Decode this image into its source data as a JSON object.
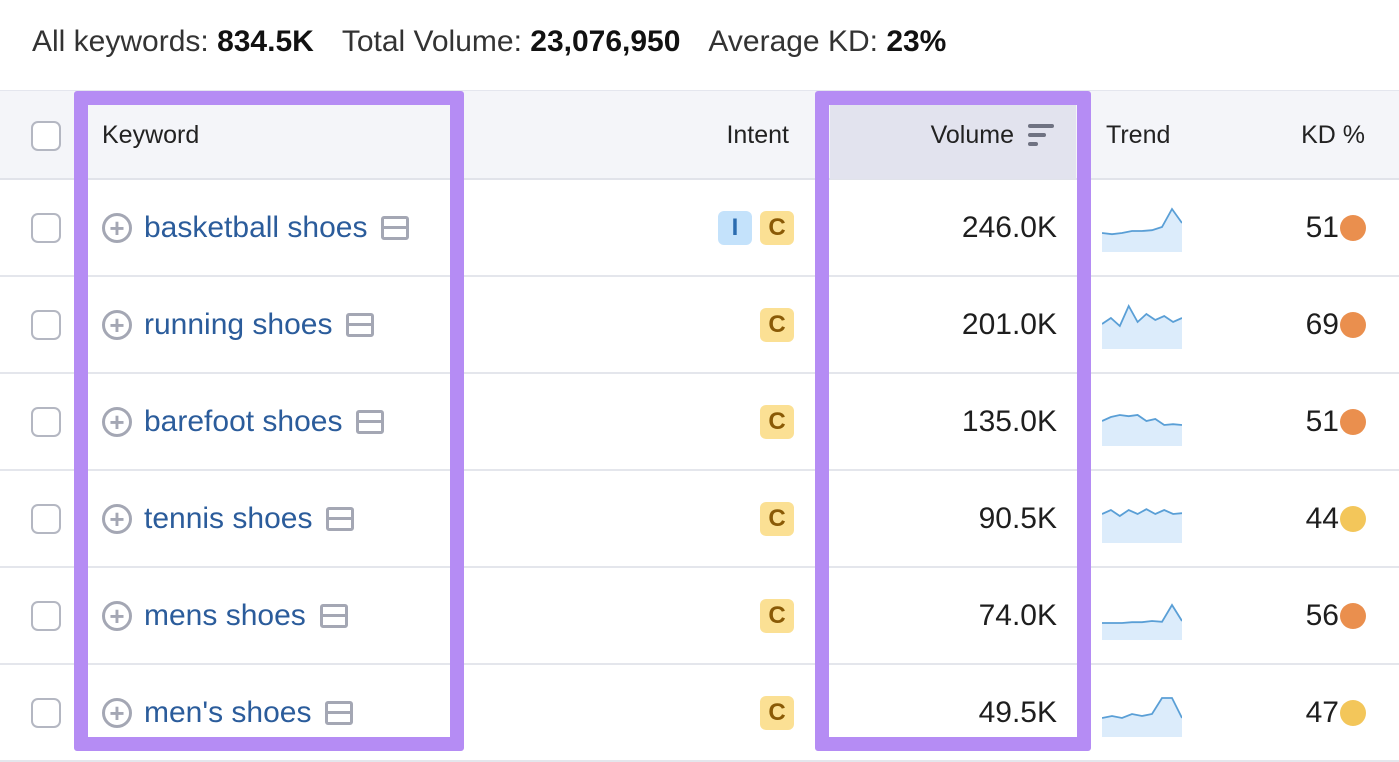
{
  "summary": {
    "all_keywords_label": "All keywords:",
    "all_keywords_value": "834.5K",
    "total_volume_label": "Total Volume:",
    "total_volume_value": "23,076,950",
    "avg_kd_label": "Average KD:",
    "avg_kd_value": "23%"
  },
  "columns": {
    "keyword": "Keyword",
    "intent": "Intent",
    "volume": "Volume",
    "trend": "Trend",
    "kd": "KD %"
  },
  "colors": {
    "highlight": "#b58cf4",
    "link": "#2b5c9b",
    "kd_orange": "#ea8f4e",
    "kd_yellow": "#f3c65a",
    "trend_line": "#5a9fd6",
    "trend_fill": "#dcecfb"
  },
  "icons": {
    "add": "plus-circle-icon",
    "serp": "serp-features-icon",
    "sort": "sort-desc-icon"
  },
  "rows": [
    {
      "keyword": "basketball shoes",
      "intents": [
        "I",
        "C"
      ],
      "volume": "246.0K",
      "kd": "51",
      "kd_color": "orange",
      "trend": [
        0.35,
        0.32,
        0.35,
        0.4,
        0.4,
        0.42,
        0.5,
        0.95,
        0.6
      ]
    },
    {
      "keyword": "running shoes",
      "intents": [
        "C"
      ],
      "volume": "201.0K",
      "kd": "69",
      "kd_color": "orange",
      "trend": [
        0.5,
        0.65,
        0.45,
        0.95,
        0.55,
        0.75,
        0.6,
        0.7,
        0.55,
        0.65
      ]
    },
    {
      "keyword": "barefoot shoes",
      "intents": [
        "C"
      ],
      "volume": "135.0K",
      "kd": "51",
      "kd_color": "orange",
      "trend": [
        0.5,
        0.6,
        0.65,
        0.62,
        0.65,
        0.5,
        0.55,
        0.4,
        0.42,
        0.4
      ]
    },
    {
      "keyword": "tennis shoes",
      "intents": [
        "C"
      ],
      "volume": "90.5K",
      "kd": "44",
      "kd_color": "yellow",
      "trend": [
        0.6,
        0.7,
        0.55,
        0.7,
        0.6,
        0.72,
        0.6,
        0.7,
        0.6,
        0.62
      ]
    },
    {
      "keyword": "mens shoes",
      "intents": [
        "C"
      ],
      "volume": "74.0K",
      "kd": "56",
      "kd_color": "orange",
      "trend": [
        0.3,
        0.3,
        0.3,
        0.32,
        0.32,
        0.35,
        0.33,
        0.75,
        0.35
      ]
    },
    {
      "keyword": "men's shoes",
      "intents": [
        "C"
      ],
      "volume": "49.5K",
      "kd": "47",
      "kd_color": "yellow",
      "trend": [
        0.35,
        0.4,
        0.35,
        0.45,
        0.4,
        0.45,
        0.85,
        0.85,
        0.35
      ]
    }
  ]
}
